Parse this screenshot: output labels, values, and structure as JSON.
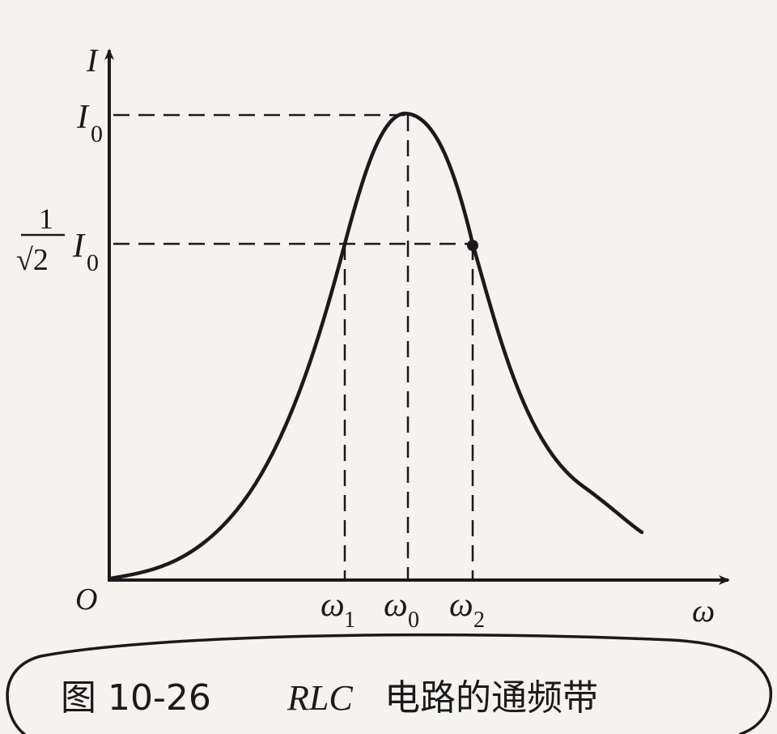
{
  "axes": {
    "y_label": "I",
    "x_label": "ω",
    "origin_label": "O"
  },
  "levels": {
    "peak_label": {
      "base": "I",
      "sub": "0"
    },
    "half_power_label": {
      "frac_num": "1",
      "frac_den": "√2",
      "base": "I",
      "sub": "0"
    }
  },
  "frequencies": {
    "w1": {
      "base": "ω",
      "sub": "1"
    },
    "w0": {
      "base": "ω",
      "sub": "0"
    },
    "w2": {
      "base": "ω",
      "sub": "2"
    }
  },
  "caption": {
    "figure_label": "图 10-26",
    "circuit": "RLC",
    "text": "电路的通频带"
  },
  "colors": {
    "ink": "#1a1a1a",
    "paper": "#f4f3f0"
  }
}
